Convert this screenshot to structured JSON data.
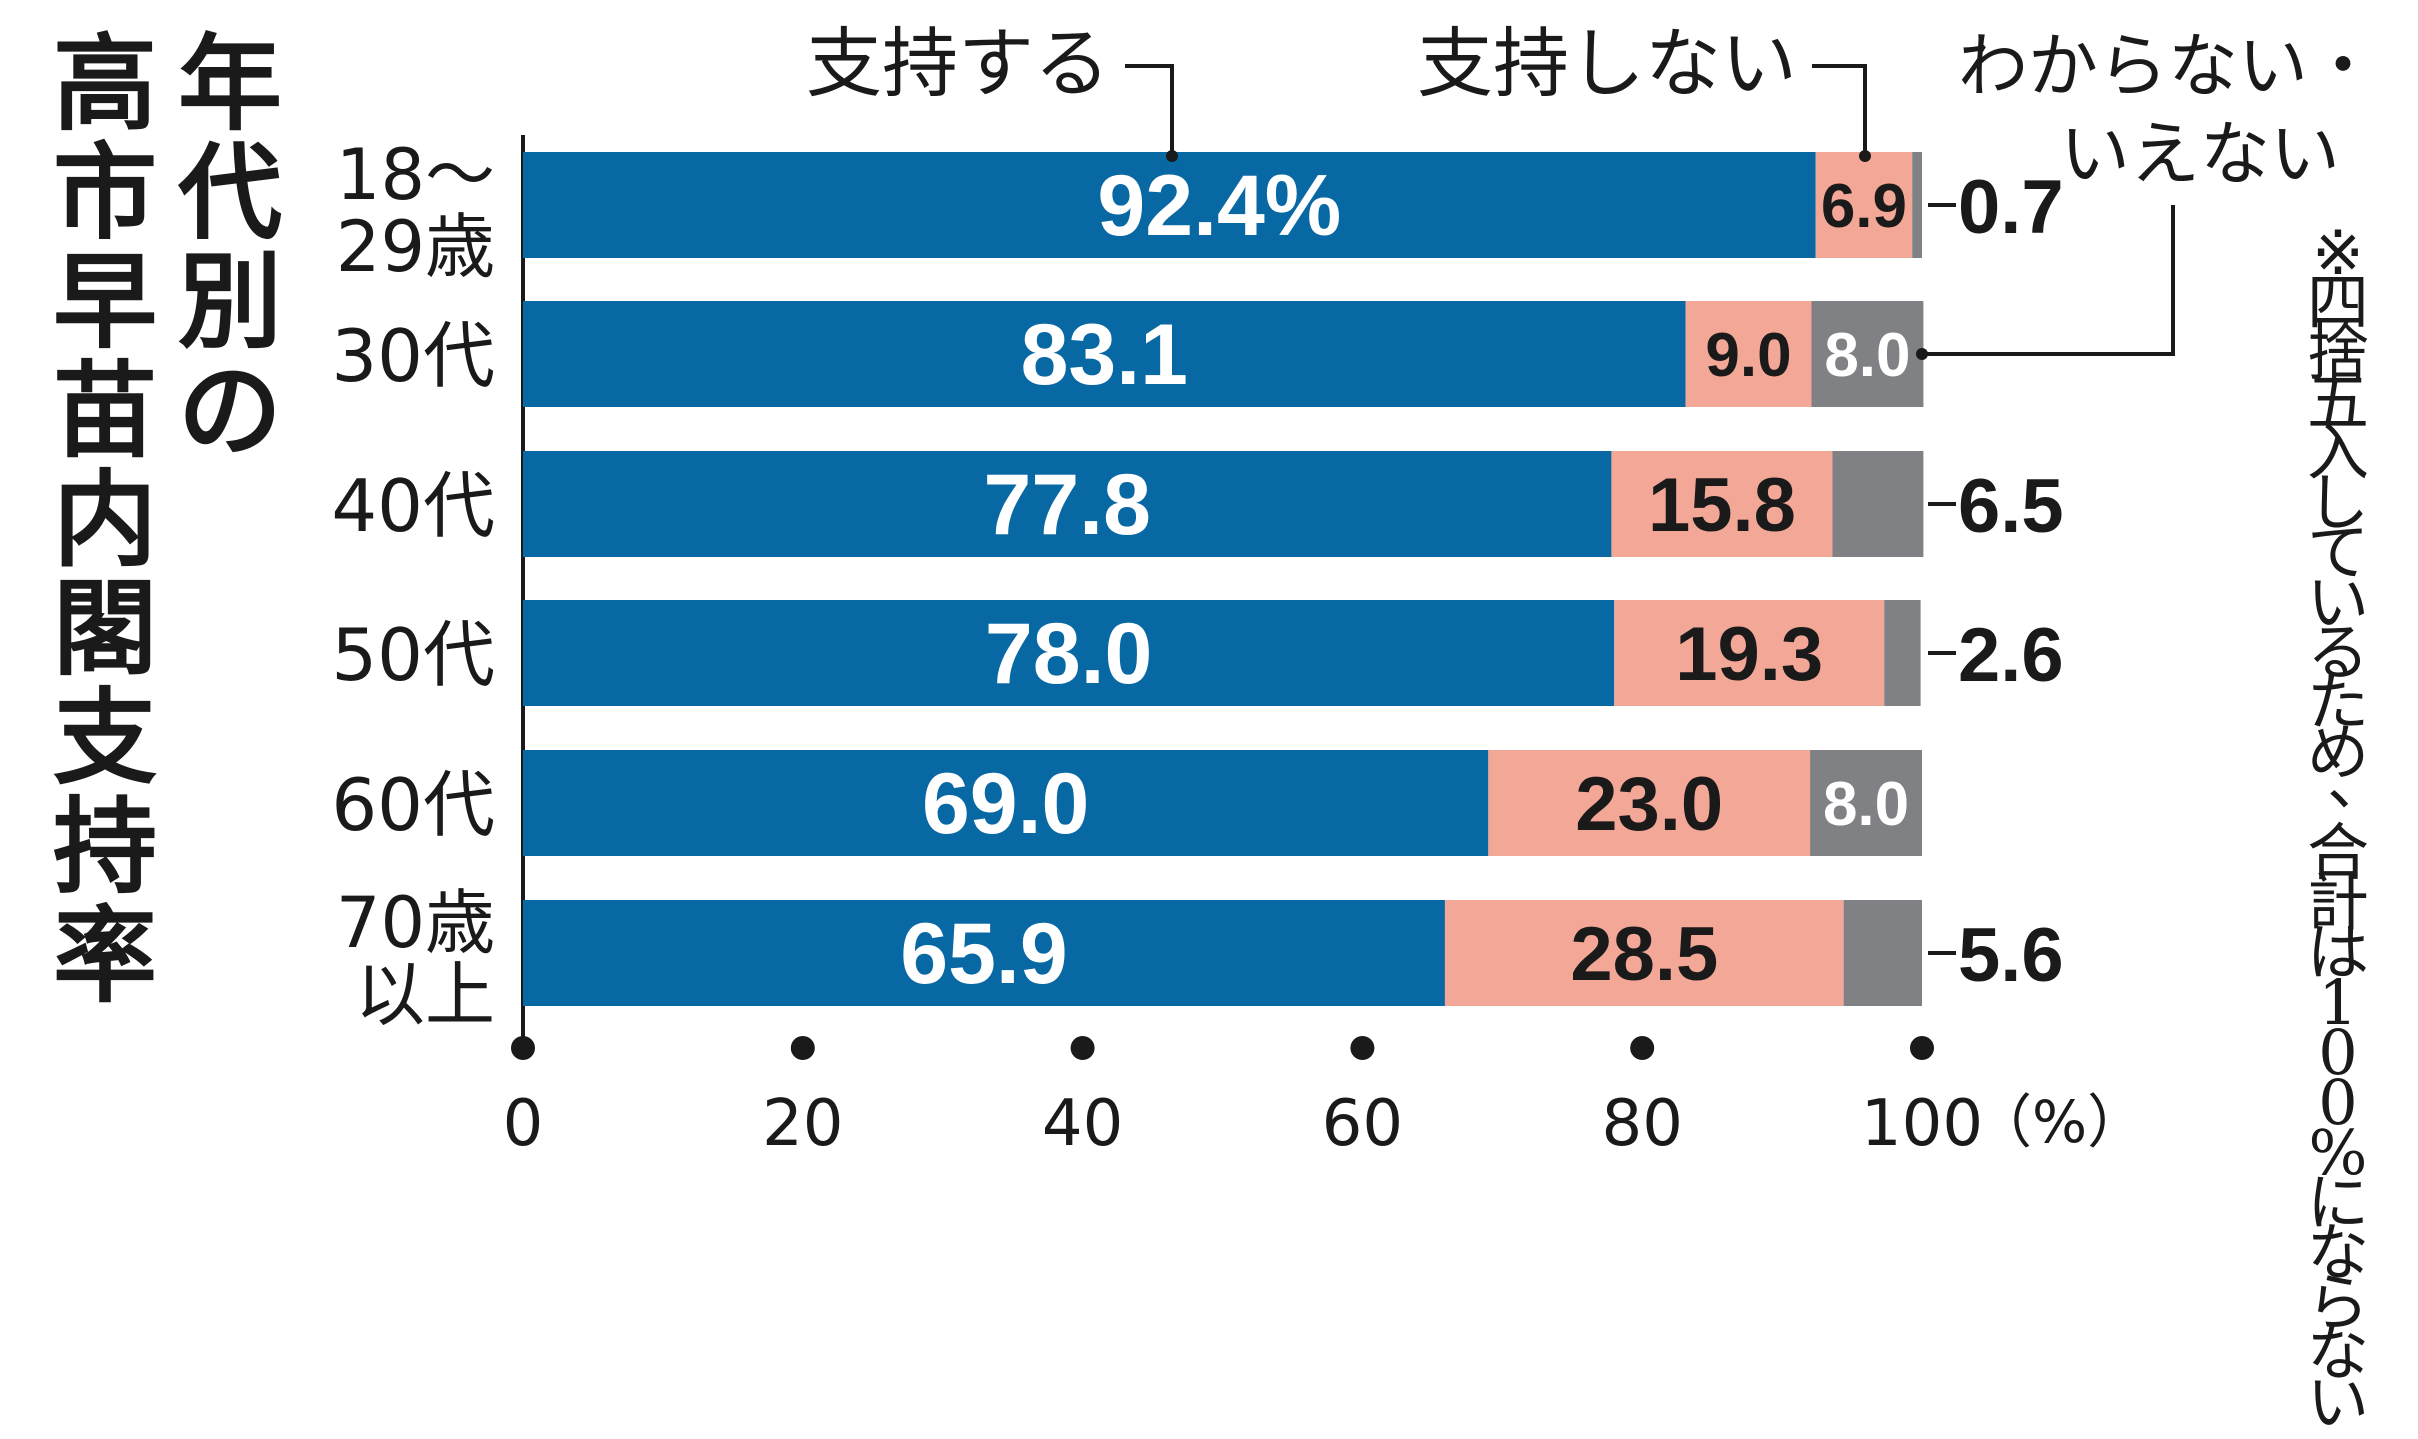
{
  "title": "年代別の高市早苗内閣支持率",
  "note": "※四捨五入しているため、合計は100%にならない",
  "colors": {
    "support": "#0868a4",
    "not_support": "#f3a797",
    "unknown": "#808184",
    "text": "#1a1a1a"
  },
  "chart_data": {
    "type": "bar",
    "orientation": "horizontal",
    "stacked": true,
    "unit_label": "（%）",
    "xlim": [
      0,
      100
    ],
    "x_ticks": [
      "0",
      "20",
      "40",
      "60",
      "80",
      "100"
    ],
    "categories": [
      {
        "line1": "18～",
        "line2": "29歳"
      },
      {
        "line1": "30代",
        "line2": ""
      },
      {
        "line1": "40代",
        "line2": ""
      },
      {
        "line1": "50代",
        "line2": ""
      },
      {
        "line1": "60代",
        "line2": ""
      },
      {
        "line1": "70歳",
        "line2": "以上"
      }
    ],
    "series": [
      {
        "name": "支持する",
        "values": [
          92.4,
          83.1,
          77.8,
          78.0,
          69.0,
          65.9
        ],
        "labels": [
          "92.4%",
          "83.1",
          "77.8",
          "78.0",
          "69.0",
          "65.9"
        ]
      },
      {
        "name": "支持しない",
        "values": [
          6.9,
          9.0,
          15.8,
          19.3,
          23.0,
          28.5
        ],
        "labels": [
          "6.9",
          "9.0",
          "15.8",
          "19.3",
          "23.0",
          "28.5"
        ]
      },
      {
        "name_line1": "わからない・",
        "name_line2": "いえない",
        "values": [
          0.7,
          8.0,
          6.5,
          2.6,
          8.0,
          5.6
        ],
        "labels": [
          "0.7",
          "8.0",
          "6.5",
          "2.6",
          "8.0",
          "5.6"
        ]
      }
    ]
  }
}
